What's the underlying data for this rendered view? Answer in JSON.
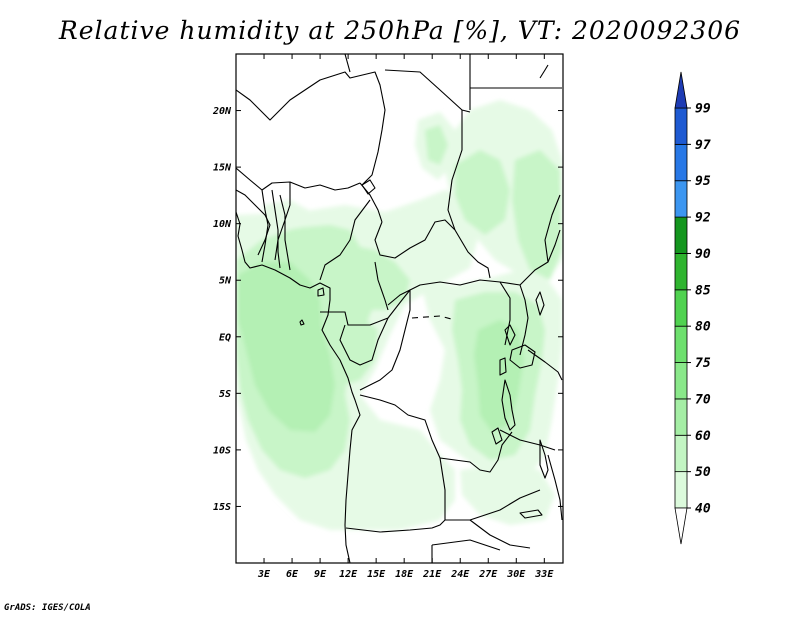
{
  "title": "Relative humidity at 250hPa [%], VT: 2020092306",
  "credit": "GrADS: IGES/COLA",
  "map": {
    "lon_range": [
      0,
      35
    ],
    "lat_range": [
      -20,
      25
    ],
    "lat_ticks": [
      {
        "value": 20,
        "label": "20N"
      },
      {
        "value": 15,
        "label": "15N"
      },
      {
        "value": 10,
        "label": "10N"
      },
      {
        "value": 5,
        "label": "5N"
      },
      {
        "value": 0,
        "label": "EQ"
      },
      {
        "value": -5,
        "label": "5S"
      },
      {
        "value": -10,
        "label": "10S"
      },
      {
        "value": -15,
        "label": "15S"
      }
    ],
    "lon_ticks": [
      {
        "value": 3,
        "label": "3E"
      },
      {
        "value": 6,
        "label": "6E"
      },
      {
        "value": 9,
        "label": "9E"
      },
      {
        "value": 12,
        "label": "12E"
      },
      {
        "value": 15,
        "label": "15E"
      },
      {
        "value": 18,
        "label": "18E"
      },
      {
        "value": 21,
        "label": "21E"
      },
      {
        "value": 24,
        "label": "24E"
      },
      {
        "value": 27,
        "label": "27E"
      },
      {
        "value": 30,
        "label": "30E"
      },
      {
        "value": 33,
        "label": "33E"
      }
    ]
  },
  "colorbar": {
    "levels": [
      "40",
      "50",
      "60",
      "70",
      "75",
      "80",
      "85",
      "90",
      "92",
      "95",
      "97",
      "99"
    ],
    "colors": [
      "#f0fff0",
      "#dcfadc",
      "#c3f5c3",
      "#a5eea5",
      "#8ae88a",
      "#6ee06e",
      "#50d250",
      "#2fb42f",
      "#14961e",
      "#3c96f0",
      "#2878e6",
      "#1e5ad2",
      "#1e3cb4"
    ],
    "under_color": "#ffffff"
  },
  "colors": {
    "land": "#ffffff",
    "coast": "#000000",
    "humid_light": "#e6fae6",
    "humid_mid": "#c8f5c8",
    "humid_strong": "#a8eea8"
  }
}
